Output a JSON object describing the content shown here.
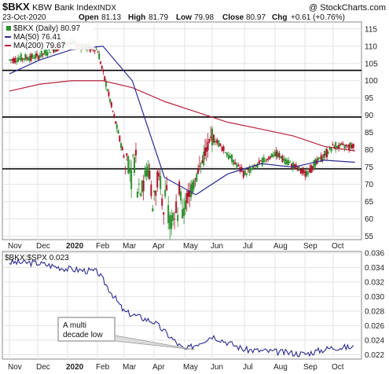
{
  "header": {
    "symbol": "$BKX",
    "name": "KBW Bank Index",
    "exchange": "INDX",
    "watermark": "@ StockCharts.com",
    "date": "23-Oct-2020",
    "open_label": "Open",
    "open": "81.13",
    "high_label": "High",
    "high": "81.79",
    "low_label": "Low",
    "low": "79.98",
    "close_label": "Close",
    "close": "80.97",
    "chg_label": "Chg",
    "chg": "+0.61 (+0.76%)"
  },
  "legend": {
    "main": "$BKX (Daily) 80.97",
    "ma50": "MA(50) 76.41",
    "ma200": "MA(200) 79.67"
  },
  "ratio": {
    "label": "$BKX:$SPX 0.023",
    "annotation_line1": "A multi",
    "annotation_line2": "decade low"
  },
  "colors": {
    "up": "#2f8f2f",
    "down": "#b0122a",
    "ma50": "#2b2b8f",
    "ma200": "#b8233e",
    "ratio": "#2b2b8f",
    "grid": "#e3e3e3",
    "hline": "#000000"
  },
  "chart_data": [
    {
      "type": "candlestick",
      "title": "$BKX KBW Bank Index INDX",
      "ylim": [
        54,
        117
      ],
      "y_ticks": [
        55,
        60,
        65,
        70,
        75,
        80,
        85,
        90,
        95,
        100,
        105,
        110,
        115
      ],
      "x_ticks": [
        "Nov",
        "Dec",
        "2020",
        "Feb",
        "Mar",
        "Apr",
        "May",
        "Jun",
        "Jul",
        "Aug",
        "Sep",
        "Oct"
      ],
      "horizontal_lines": [
        103,
        89.5,
        74.5
      ],
      "series": [
        {
          "name": "$BKX (Daily)",
          "x": [
            "Nov-2019",
            "Dec-2019",
            "Jan-2020",
            "Feb-2020",
            "Mar-2020",
            "Apr-2020",
            "May-2020",
            "Jun-2020",
            "Jul-2020",
            "Aug-2020",
            "Sep-2020",
            "Oct-2020"
          ],
          "values": [
            106,
            107,
            111,
            109,
            78,
            68,
            64,
            84,
            73,
            79,
            73,
            81
          ]
        },
        {
          "name": "MA(50)",
          "values": [
            102,
            106,
            109,
            110,
            100,
            72,
            67,
            73,
            76,
            75,
            77,
            76.41
          ]
        },
        {
          "name": "MA(200)",
          "values": [
            97,
            99,
            100,
            100,
            98,
            94,
            91,
            88,
            86,
            84,
            81,
            79.67
          ]
        }
      ]
    },
    {
      "type": "line",
      "title": "$BKX:$SPX 0.023",
      "ylim": [
        0.0214,
        0.0362
      ],
      "y_ticks": [
        0.022,
        0.024,
        0.026,
        0.028,
        0.03,
        0.032,
        0.034,
        0.036
      ],
      "x_ticks": [
        "Nov",
        "Dec",
        "2020",
        "Feb",
        "Mar",
        "Apr",
        "May",
        "Jun",
        "Jul",
        "Aug",
        "Sep",
        "Oct"
      ],
      "series": [
        {
          "name": "$BKX:$SPX",
          "x": [
            "Nov-2019",
            "Dec-2019",
            "Jan-2020",
            "Feb-2020",
            "Mar-2020",
            "Apr-2020",
            "May-2020",
            "Jun-2020",
            "Jul-2020",
            "Aug-2020",
            "Sep-2020",
            "Oct-2020"
          ],
          "values": [
            0.0347,
            0.0346,
            0.0338,
            0.0334,
            0.0279,
            0.0265,
            0.0226,
            0.0246,
            0.0227,
            0.0224,
            0.0221,
            0.023
          ]
        }
      ]
    }
  ]
}
